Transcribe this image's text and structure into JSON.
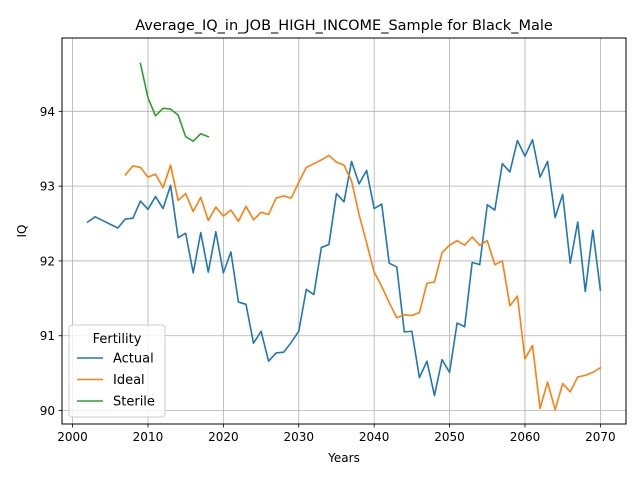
{
  "chart_data": {
    "type": "line",
    "title": "Average_IQ_in_JOB_HIGH_INCOME_Sample for Black_Male",
    "xlabel": "Years",
    "ylabel": "IQ",
    "xlim": [
      1998.6,
      2073.4
    ],
    "ylim": [
      89.82,
      94.98
    ],
    "xticks": [
      2000,
      2010,
      2020,
      2030,
      2040,
      2050,
      2060,
      2070
    ],
    "yticks": [
      90,
      91,
      92,
      93,
      94
    ],
    "grid": true,
    "legend": {
      "title": "Fertility",
      "placement": "lower-left"
    },
    "series": [
      {
        "name": "Actual",
        "color": "#1f77b4",
        "x": [
          2002,
          2003,
          2004,
          2005,
          2006,
          2007,
          2008,
          2009,
          2010,
          2011,
          2012,
          2013,
          2014,
          2015,
          2016,
          2017,
          2018,
          2019,
          2020,
          2021,
          2022,
          2023,
          2024,
          2025,
          2026,
          2027,
          2028,
          2029,
          2030,
          2031,
          2032,
          2033,
          2034,
          2035,
          2036,
          2037,
          2038,
          2039,
          2040,
          2041,
          2042,
          2043,
          2044,
          2045,
          2046,
          2047,
          2048,
          2049,
          2050,
          2051,
          2052,
          2053,
          2054,
          2055,
          2056,
          2057,
          2058,
          2059,
          2060,
          2061,
          2062,
          2063,
          2064,
          2065,
          2066,
          2067,
          2068,
          2069,
          2070
        ],
        "values": [
          92.52,
          92.59,
          92.54,
          92.49,
          92.44,
          92.56,
          92.57,
          92.8,
          92.69,
          92.86,
          92.7,
          93.01,
          92.31,
          92.37,
          91.84,
          92.38,
          91.85,
          92.39,
          91.84,
          92.12,
          91.45,
          91.42,
          90.9,
          91.06,
          90.66,
          90.77,
          90.78,
          90.91,
          91.06,
          91.62,
          91.55,
          92.18,
          92.22,
          92.9,
          92.79,
          93.33,
          93.03,
          93.21,
          92.7,
          92.76,
          91.97,
          91.92,
          91.05,
          91.06,
          90.44,
          90.66,
          90.2,
          90.68,
          90.51,
          91.17,
          91.12,
          91.98,
          91.95,
          92.75,
          92.68,
          93.3,
          93.19,
          93.61,
          93.4,
          93.62,
          93.12,
          93.33,
          92.58,
          92.89,
          91.97,
          92.52,
          91.59,
          92.41,
          91.61
        ]
      },
      {
        "name": "Ideal",
        "color": "#ff7f0e",
        "x": [
          2007,
          2008,
          2009,
          2010,
          2011,
          2012,
          2013,
          2014,
          2015,
          2016,
          2017,
          2018,
          2019,
          2020,
          2021,
          2022,
          2023,
          2024,
          2025,
          2026,
          2027,
          2028,
          2029,
          2030,
          2031,
          2032,
          2033,
          2034,
          2035,
          2036,
          2037,
          2038,
          2039,
          2040,
          2041,
          2042,
          2043,
          2044,
          2045,
          2046,
          2047,
          2048,
          2049,
          2050,
          2051,
          2052,
          2053,
          2054,
          2055,
          2056,
          2057,
          2058,
          2059,
          2060,
          2061,
          2062,
          2063,
          2064,
          2065,
          2066,
          2067,
          2068,
          2069,
          2070
        ],
        "values": [
          93.15,
          93.27,
          93.25,
          93.12,
          93.16,
          92.98,
          93.28,
          92.81,
          92.9,
          92.66,
          92.85,
          92.54,
          92.72,
          92.6,
          92.68,
          92.53,
          92.73,
          92.55,
          92.65,
          92.62,
          92.84,
          92.87,
          92.84,
          93.05,
          93.25,
          93.3,
          93.35,
          93.41,
          93.32,
          93.28,
          93.07,
          92.62,
          92.24,
          91.85,
          91.66,
          91.44,
          91.24,
          91.28,
          91.27,
          91.31,
          91.7,
          91.72,
          92.11,
          92.21,
          92.27,
          92.21,
          92.32,
          92.21,
          92.27,
          91.95,
          92.0,
          91.4,
          91.53,
          90.69,
          90.87,
          90.03,
          90.38,
          90.01,
          90.36,
          90.25,
          90.45,
          90.47,
          90.51,
          90.57
        ]
      },
      {
        "name": "Sterile",
        "color": "#2ca02c",
        "x": [
          2009,
          2010,
          2011,
          2012,
          2013,
          2014,
          2015,
          2016,
          2017,
          2018
        ],
        "values": [
          94.64,
          94.18,
          93.94,
          94.04,
          94.03,
          93.95,
          93.66,
          93.6,
          93.7,
          93.66
        ]
      }
    ]
  }
}
